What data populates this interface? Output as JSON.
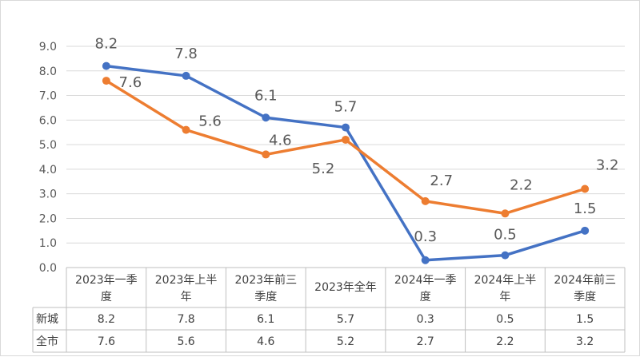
{
  "chart_data": {
    "type": "line",
    "categories": [
      [
        "2023年一季",
        "度"
      ],
      [
        "2023年上半",
        "年"
      ],
      [
        "2023年前三",
        "季度"
      ],
      [
        "2023年全年"
      ],
      [
        "2024年一季",
        "度"
      ],
      [
        "2024年上半",
        "年"
      ],
      [
        "2024年前三",
        "季度"
      ]
    ],
    "ylim": [
      0,
      9
    ],
    "yticks": [
      "0.0",
      "1.0",
      "2.0",
      "3.0",
      "4.0",
      "5.0",
      "6.0",
      "7.0",
      "8.0",
      "9.0"
    ],
    "series": [
      {
        "name": "新城",
        "color": "#4472c4",
        "values": [
          8.2,
          7.8,
          6.1,
          5.7,
          0.3,
          0.5,
          1.5
        ],
        "labels": [
          "8.2",
          "7.8",
          "6.1",
          "5.7",
          "0.3",
          "0.5",
          "1.5"
        ]
      },
      {
        "name": "全市",
        "color": "#ed7d31",
        "values": [
          7.6,
          5.6,
          4.6,
          5.2,
          2.7,
          2.2,
          3.2
        ],
        "labels": [
          "7.6",
          "5.6",
          "4.6",
          "5.2",
          "2.7",
          "2.2",
          "3.2"
        ]
      }
    ]
  }
}
